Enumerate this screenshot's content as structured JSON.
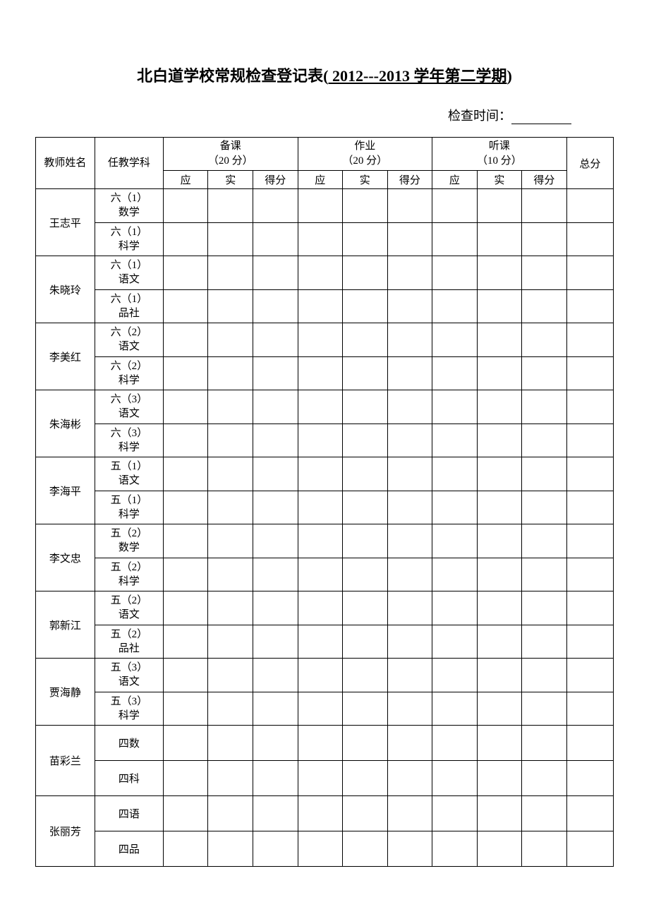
{
  "title": {
    "prefix": "北白道学校常规检查登记表(",
    "period": " 2012---2013 学年第二学期",
    "suffix": ")"
  },
  "checkTime": {
    "label": "检查时间："
  },
  "headers": {
    "teacherName": "教师姓名",
    "subject": "任教学科",
    "prep": "备课",
    "prepScore": "（20 分）",
    "homework": "作业",
    "homeworkScore": "（20 分）",
    "listen": "听课",
    "listenScore": "（10 分）",
    "total": "总分",
    "should": "应",
    "actual": "实",
    "score": "得分"
  },
  "teachers": [
    {
      "name": "王志平",
      "subjects": [
        "六（1）数学",
        "六（1）科学"
      ]
    },
    {
      "name": "朱晓玲",
      "subjects": [
        "六（1）语文",
        "六（1）品社"
      ]
    },
    {
      "name": "李美红",
      "subjects": [
        "六（2）语文",
        "六（2）科学"
      ]
    },
    {
      "name": "朱海彬",
      "subjects": [
        "六（3）语文",
        "六（3）科学"
      ]
    },
    {
      "name": "李海平",
      "subjects": [
        "五（1）语文",
        "五（1）科学"
      ]
    },
    {
      "name": "李文忠",
      "subjects": [
        "五（2）数学",
        "五（2）科学"
      ]
    },
    {
      "name": "郭新江",
      "subjects": [
        "五（2）语文",
        "五（2）品社"
      ]
    },
    {
      "name": "贾海静",
      "subjects": [
        "五（3）语文",
        "五（3）科学"
      ]
    },
    {
      "name": "苗彩兰",
      "subjects": [
        "四数",
        "四科"
      ],
      "single": true
    },
    {
      "name": "张丽芳",
      "subjects": [
        "四语",
        "四品"
      ],
      "single": true
    }
  ]
}
